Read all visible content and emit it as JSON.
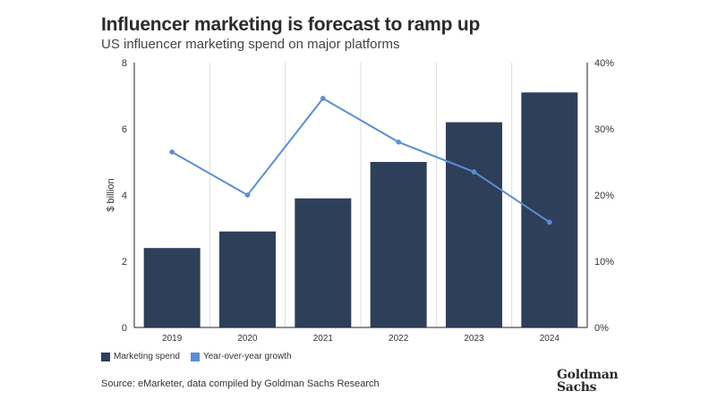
{
  "title": "Influencer marketing is forecast to ramp up",
  "subtitle": "US influencer marketing spend on major platforms",
  "legend": {
    "bars": "Marketing spend",
    "line": "Year-over-year growth"
  },
  "source": "Source: eMarketer, data compiled by Goldman Sachs Research",
  "logo": {
    "line1": "Goldman",
    "line2": "Sachs"
  },
  "colors": {
    "bar": "#2e3f5a",
    "line": "#5b8ed6",
    "grid": "#dddddd",
    "axis": "#222222"
  },
  "chart_data": {
    "type": "bar",
    "categories": [
      "2019",
      "2020",
      "2021",
      "2022",
      "2023",
      "2024"
    ],
    "series": [
      {
        "name": "Marketing spend",
        "type": "bar",
        "axis": "left",
        "values": [
          2.4,
          2.9,
          3.9,
          5.0,
          6.2,
          7.1
        ]
      },
      {
        "name": "Year-over-year growth",
        "type": "line",
        "axis": "right",
        "values": [
          26.5,
          20.0,
          34.6,
          28.0,
          23.5,
          15.9
        ]
      }
    ],
    "ylabel": "$ billion",
    "ylim": [
      0,
      8
    ],
    "yticks": [
      "0",
      "2",
      "4",
      "6",
      "8"
    ],
    "y2lim": [
      0,
      40
    ],
    "y2ticks": [
      "0%",
      "10%",
      "20%",
      "30%",
      "40%"
    ],
    "grid": "vertical"
  }
}
